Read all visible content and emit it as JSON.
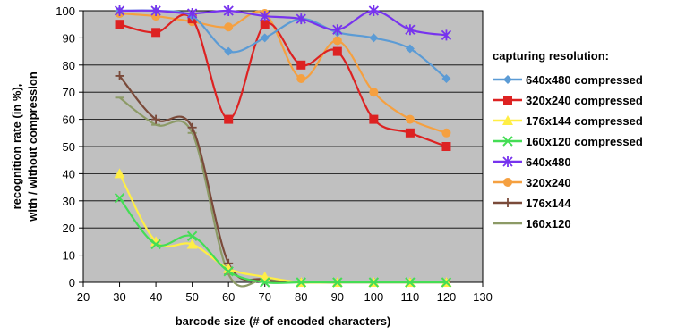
{
  "chart_data": {
    "type": "line",
    "title": "",
    "xlabel": "barcode size (# of encoded characters)",
    "ylabel_lines": [
      "recognition rate (in %),",
      "with / without compression"
    ],
    "xlim": [
      20,
      130
    ],
    "ylim": [
      0,
      100
    ],
    "xticks": [
      20,
      30,
      40,
      50,
      60,
      70,
      80,
      90,
      100,
      110,
      120,
      130
    ],
    "yticks": [
      0,
      10,
      20,
      30,
      40,
      50,
      60,
      70,
      80,
      90,
      100
    ],
    "grid": true,
    "plot_background": "#c0c0c0",
    "legend_title": "capturing resolution:",
    "legend_position": "right",
    "x": [
      30,
      40,
      50,
      60,
      70,
      80,
      90,
      100,
      110,
      120
    ],
    "series": [
      {
        "name": "640x480 compressed",
        "color": "#5b9bd5",
        "marker": "diamond",
        "values": [
          100,
          100,
          98,
          85,
          90,
          97,
          92,
          90,
          86,
          75
        ]
      },
      {
        "name": "320x240 compressed",
        "color": "#dd2222",
        "marker": "square",
        "values": [
          95,
          92,
          97,
          60,
          95,
          80,
          85,
          60,
          55,
          50
        ]
      },
      {
        "name": "176x144 compressed",
        "color": "#ffee44",
        "marker": "triangle",
        "values": [
          40,
          15,
          14,
          5,
          2,
          0,
          0,
          0,
          0,
          0
        ]
      },
      {
        "name": "160x120 compressed",
        "color": "#44dd55",
        "marker": "x",
        "values": [
          31,
          14,
          17,
          4,
          0,
          0,
          0,
          0,
          0,
          0
        ]
      },
      {
        "name": "640x480",
        "color": "#7733ee",
        "marker": "star",
        "values": [
          100,
          100,
          99,
          100,
          98,
          97,
          93,
          100,
          93,
          91
        ]
      },
      {
        "name": "320x240",
        "color": "#f5a040",
        "marker": "circle",
        "values": [
          99,
          98,
          96,
          94,
          99,
          75,
          89,
          70,
          60,
          55
        ]
      },
      {
        "name": "176x144",
        "color": "#7a4a3a",
        "marker": "plus",
        "values": [
          76,
          60,
          57,
          7,
          1,
          0,
          0,
          0,
          0,
          0
        ]
      },
      {
        "name": "160x120",
        "color": "#8c9a66",
        "marker": "dash",
        "values": [
          68,
          58,
          55,
          3,
          1,
          0,
          0,
          0,
          0,
          0
        ]
      }
    ]
  }
}
